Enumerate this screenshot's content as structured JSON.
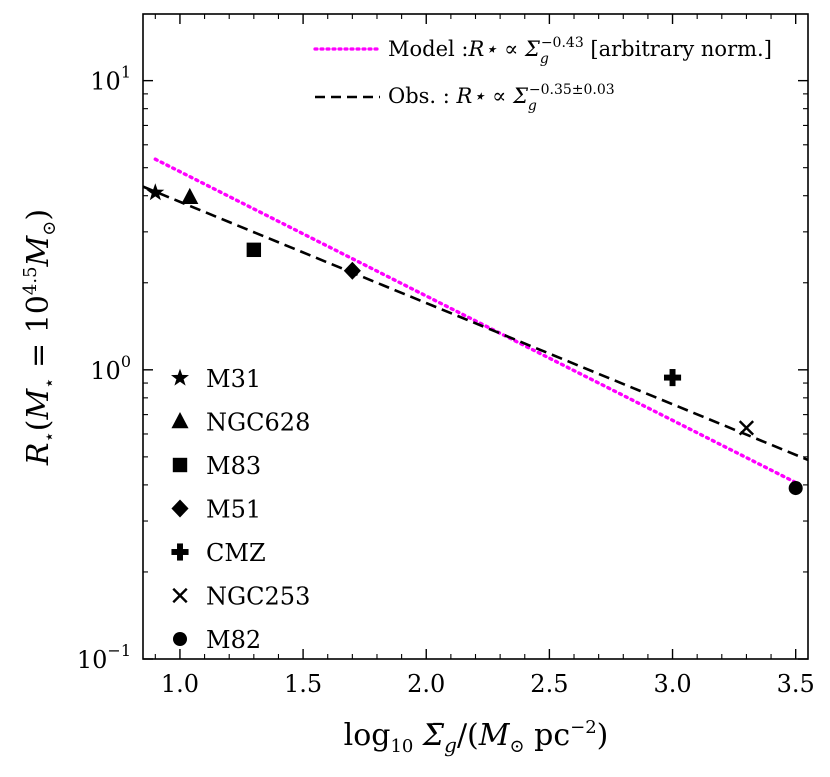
{
  "chart_data": {
    "type": "scatter",
    "xlabel": "log10 Σ̄g/(M⊙ pc⁻²)",
    "ylabel": "R⋆(M⋆ = 10^4.5 M⊙)",
    "xlim": [
      0.85,
      3.55
    ],
    "ylim": [
      0.1,
      17
    ],
    "yscale": "log",
    "xticks": [
      1.0,
      1.5,
      2.0,
      2.5,
      3.0,
      3.5
    ],
    "xtick_labels": [
      "1.0",
      "1.5",
      "2.0",
      "2.5",
      "3.0",
      "3.5"
    ],
    "yticks": [
      0.1,
      1,
      10
    ],
    "ytick_labels": [
      {
        "base": "10",
        "exp": "−1"
      },
      {
        "base": "10",
        "exp": "0"
      },
      {
        "base": "10",
        "exp": "1"
      }
    ],
    "points": [
      {
        "name": "M31",
        "marker": "star",
        "x": 0.9,
        "y": 4.1
      },
      {
        "name": "NGC628",
        "marker": "triangle",
        "x": 1.04,
        "y": 3.95
      },
      {
        "name": "M83",
        "marker": "square",
        "x": 1.3,
        "y": 2.6
      },
      {
        "name": "M51",
        "marker": "diamond",
        "x": 1.7,
        "y": 2.2
      },
      {
        "name": "CMZ",
        "marker": "plus",
        "x": 3.0,
        "y": 0.94
      },
      {
        "name": "NGC253",
        "marker": "x",
        "x": 3.3,
        "y": 0.63
      },
      {
        "name": "M82",
        "marker": "circle",
        "x": 3.5,
        "y": 0.39
      }
    ],
    "lines": [
      {
        "name": "model",
        "label": "Model :R⋆ ∝ Σg^−0.43 [arbitrary norm.]",
        "style": "dotted",
        "color": "#ff00ff",
        "slope": -0.43,
        "x_range": [
          0.9,
          3.5
        ],
        "y_start": 5.35
      },
      {
        "name": "obs",
        "label": "Obs. :  R⋆ ∝ Σg^−0.35±0.03",
        "style": "dashed",
        "color": "#000000",
        "slope": -0.35,
        "x_range": [
          0.85,
          3.55
        ],
        "y_start": 4.3
      }
    ],
    "legend_lines": [
      {
        "prefix": "Model :",
        "expr": "R⋆ ∝ Σ",
        "sub": "g",
        "sup": "−0.43",
        "suffix": " [arbitrary norm.]"
      },
      {
        "prefix": "Obs. :  ",
        "expr": "R⋆ ∝ Σ",
        "sub": "g",
        "sup": "−0.35±0.03",
        "suffix": ""
      }
    ],
    "legend_position": "top-right",
    "marker_legend_position": "lower-left"
  }
}
